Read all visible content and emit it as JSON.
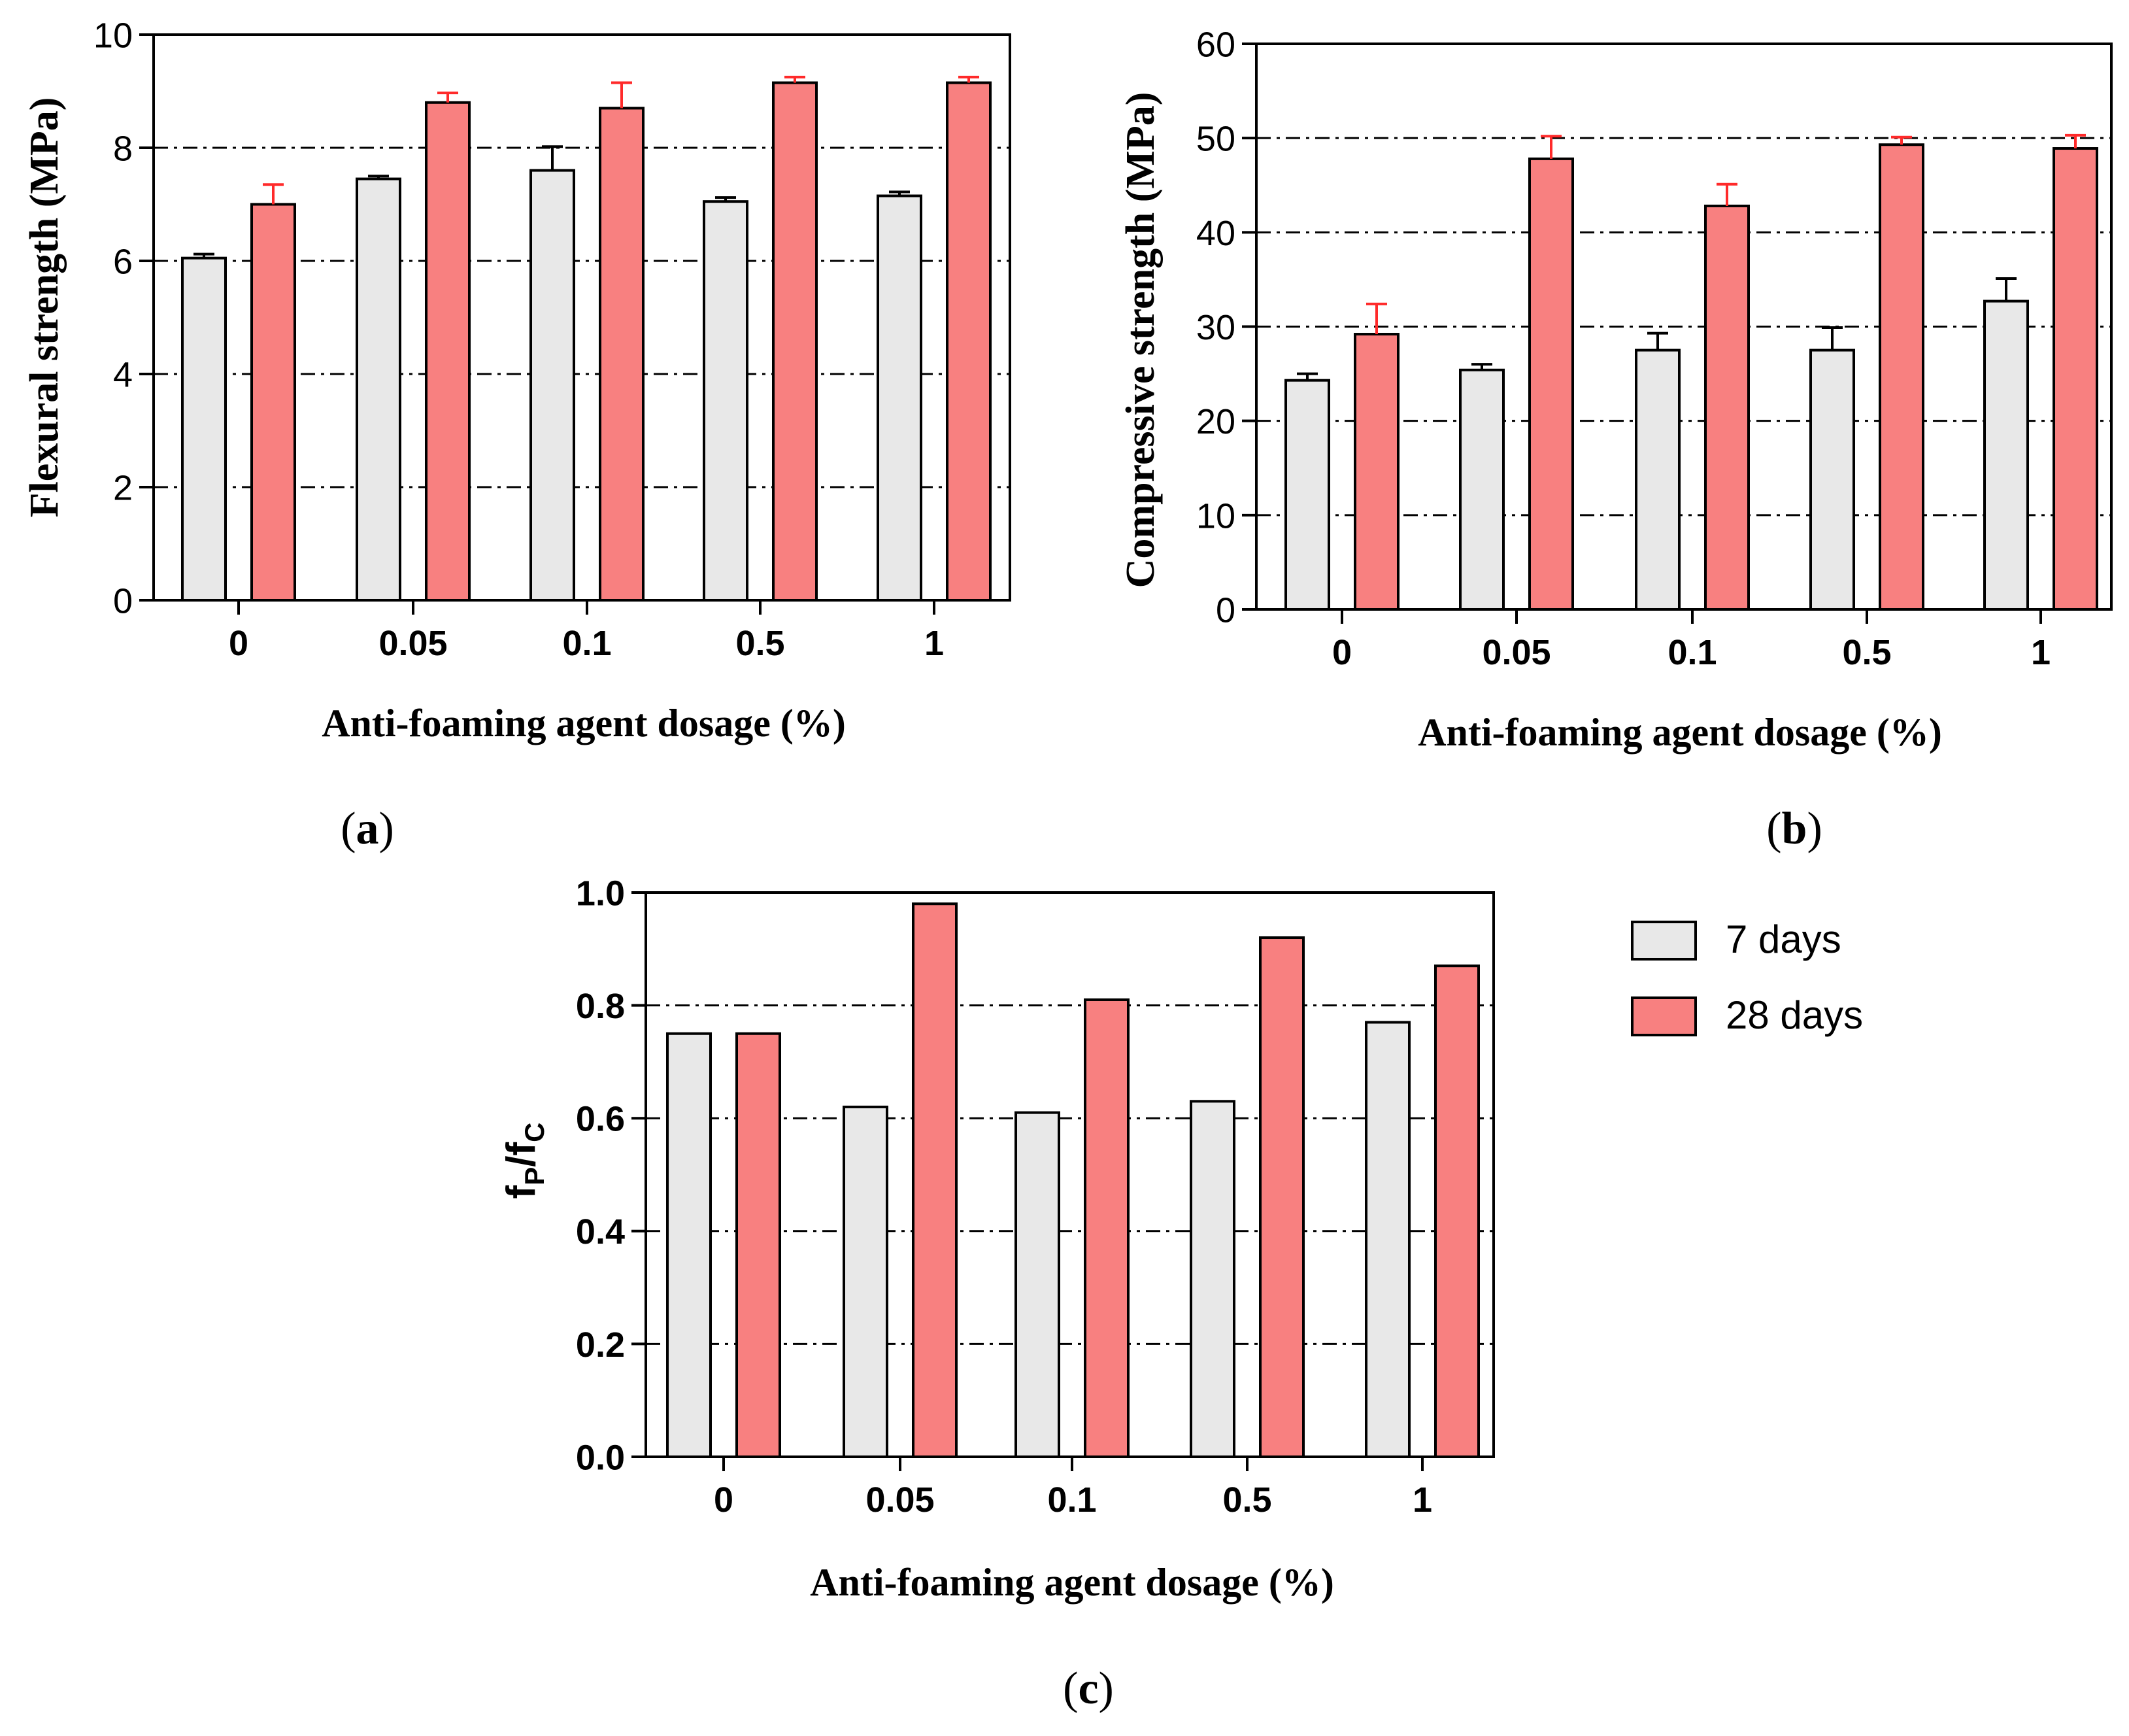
{
  "colors": {
    "seven_days_fill": "#e8e8e8",
    "twentyeight_days_fill": "#f88080",
    "error_red": "#ff2a2a",
    "error_black": "#000000",
    "gridline": "#000000"
  },
  "legend": {
    "items": [
      {
        "label": "7 days",
        "color": "#e8e8e8"
      },
      {
        "label": "28 days",
        "color": "#f88080"
      }
    ]
  },
  "chart_data": [
    {
      "id": "a",
      "type": "bar",
      "panel_label": "(a)",
      "panel_letter": "a",
      "title": "",
      "xlabel": "Anti-foaming agent dosage  (%)",
      "ylabel": "Flexural strength (MPa)",
      "categories": [
        "0",
        "0.05",
        "0.1",
        "0.5",
        "1"
      ],
      "ylim": [
        0,
        10
      ],
      "yticks": [
        0,
        2,
        4,
        6,
        8,
        10
      ],
      "ytick_labels": [
        "0",
        "2",
        "4",
        "6",
        "8",
        "10"
      ],
      "grid_lines": [
        2,
        4,
        6,
        8
      ],
      "series": [
        {
          "name": "7 days",
          "values": [
            6.05,
            7.45,
            7.6,
            7.05,
            7.15
          ],
          "errors": [
            0.07,
            0.05,
            0.42,
            0.07,
            0.07
          ]
        },
        {
          "name": "28 days",
          "values": [
            7.0,
            8.8,
            8.7,
            9.15,
            9.15
          ],
          "errors": [
            0.35,
            0.17,
            0.45,
            0.1,
            0.1
          ]
        }
      ]
    },
    {
      "id": "b",
      "type": "bar",
      "panel_label": "(b)",
      "panel_letter": "b",
      "title": "",
      "xlabel": "Anti-foaming agent dosage (%)",
      "ylabel": "Compressive strength (MPa)",
      "categories": [
        "0",
        "0.05",
        "0.1",
        "0.5",
        "1"
      ],
      "ylim": [
        0,
        60
      ],
      "yticks": [
        0,
        10,
        20,
        30,
        40,
        50,
        60
      ],
      "ytick_labels": [
        "0",
        "10",
        "20",
        "30",
        "40",
        "50",
        "60"
      ],
      "grid_lines": [
        10,
        20,
        30,
        40,
        50
      ],
      "series": [
        {
          "name": "7 days",
          "values": [
            24.3,
            25.4,
            27.5,
            27.5,
            32.7
          ],
          "errors": [
            0.7,
            0.6,
            1.8,
            2.4,
            2.4
          ]
        },
        {
          "name": "28 days",
          "values": [
            29.2,
            47.8,
            42.8,
            49.3,
            48.9
          ],
          "errors": [
            3.2,
            2.4,
            2.3,
            0.8,
            1.4
          ]
        }
      ]
    },
    {
      "id": "c",
      "type": "bar",
      "panel_label": "(c)",
      "panel_letter": "c",
      "title": "",
      "xlabel": "Anti-foaming agent dosage  (%)",
      "ylabel": "fP/fC",
      "ylabel_parts": {
        "base1": "f",
        "sub1": "P",
        "sep": "/f",
        "sub2": "C"
      },
      "categories": [
        "0",
        "0.05",
        "0.1",
        "0.5",
        "1"
      ],
      "ylim": [
        0,
        1.0
      ],
      "yticks": [
        0,
        0.2,
        0.4,
        0.6,
        0.8,
        1.0
      ],
      "ytick_labels": [
        "0.0",
        "0.2",
        "0.4",
        "0.6",
        "0.8",
        "1.0"
      ],
      "grid_lines": [
        0.2,
        0.4,
        0.6,
        0.8
      ],
      "series": [
        {
          "name": "7 days",
          "values": [
            0.75,
            0.62,
            0.61,
            0.63,
            0.77
          ]
        },
        {
          "name": "28 days",
          "values": [
            0.75,
            0.98,
            0.81,
            0.92,
            0.87
          ]
        }
      ]
    }
  ]
}
